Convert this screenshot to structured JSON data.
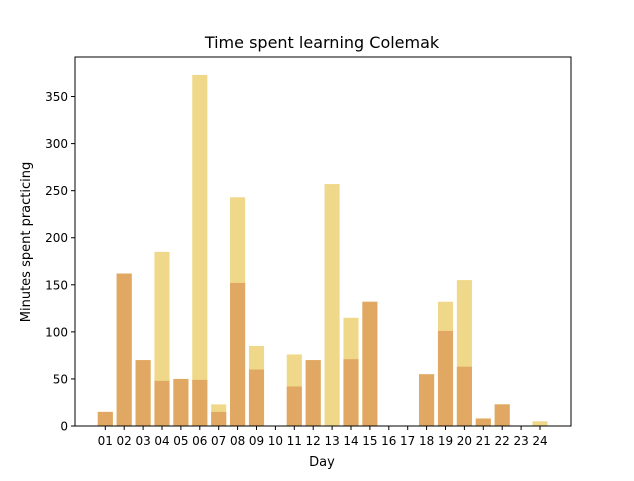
{
  "chart_data": {
    "type": "bar",
    "stacked": "overlay",
    "title": "Time spent learning Colemak",
    "xlabel": "Day",
    "ylabel": "Minutes spent practicing",
    "ylim": [
      0,
      392
    ],
    "yticks": [
      0,
      50,
      100,
      150,
      200,
      250,
      300,
      350
    ],
    "grid": false,
    "categories": [
      "01",
      "02",
      "03",
      "04",
      "05",
      "06",
      "07",
      "08",
      "09",
      "10",
      "11",
      "12",
      "13",
      "14",
      "15",
      "16",
      "17",
      "18",
      "19",
      "20",
      "21",
      "22",
      "23",
      "24"
    ],
    "series": [
      {
        "color": "#f0d88a",
        "values": [
          15,
          162,
          70,
          185,
          50,
          373,
          23,
          243,
          85,
          0,
          76,
          70,
          257,
          115,
          132,
          0,
          0,
          55,
          132,
          155,
          8,
          23,
          0,
          5
        ]
      },
      {
        "color": "#e0a862",
        "values": [
          15,
          162,
          70,
          48,
          50,
          49,
          15,
          152,
          60,
          0,
          42,
          70,
          0,
          71,
          132,
          0,
          0,
          55,
          101,
          63,
          8,
          23,
          0,
          0
        ]
      }
    ]
  }
}
